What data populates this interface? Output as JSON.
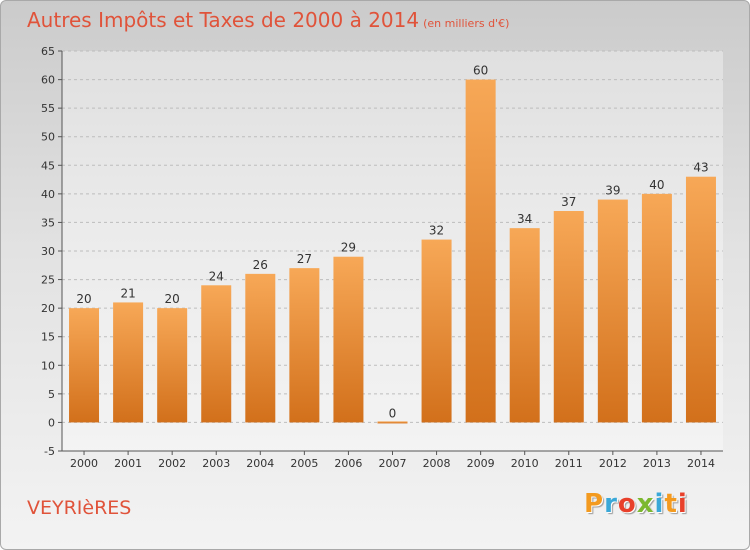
{
  "header": {
    "title": "Autres Impôts et Taxes de 2000 à 2014",
    "unit": "(en milliers d'€)"
  },
  "footer": {
    "commune": "VEYRIèRES",
    "logo": "Proxiti",
    "logo_colors": [
      "#f39a1f",
      "#3aa8d8",
      "#e8402b",
      "#7cb82f",
      "#3aa8d8",
      "#f39a1f",
      "#e8402b"
    ]
  },
  "colors": {
    "bar_top": "#f7a857",
    "bar_bottom": "#d2701b",
    "title": "#e0533a",
    "grid": "#bdbdbd",
    "text": "#333333"
  },
  "chart_data": {
    "type": "bar",
    "title": "Autres Impôts et Taxes de 2000 à 2014",
    "subtitle": "(en milliers d'€)",
    "xlabel": "",
    "ylabel": "",
    "categories": [
      "2000",
      "2001",
      "2002",
      "2003",
      "2004",
      "2005",
      "2006",
      "2007",
      "2008",
      "2009",
      "2010",
      "2011",
      "2012",
      "2013",
      "2014"
    ],
    "values": [
      20,
      21,
      20,
      24,
      26,
      27,
      29,
      0,
      32,
      60,
      34,
      37,
      39,
      40,
      43
    ],
    "ylim": [
      -5,
      65
    ],
    "yticks": [
      -5,
      0,
      5,
      10,
      15,
      20,
      25,
      30,
      35,
      40,
      45,
      50,
      55,
      60,
      65
    ],
    "grid": "horizontal-dashed",
    "legend": "none"
  }
}
